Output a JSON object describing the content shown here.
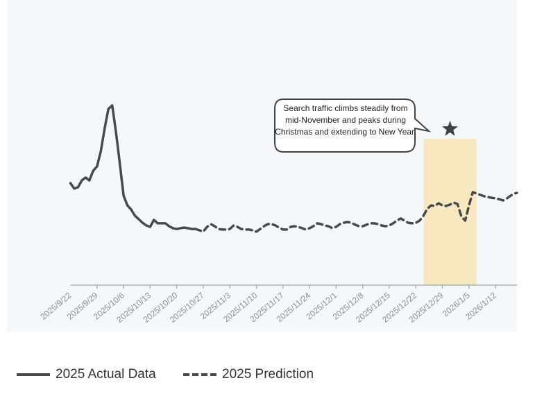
{
  "chart_data": {
    "type": "line",
    "title": "",
    "xlabel": "",
    "ylabel": "",
    "ylim": [
      0,
      100
    ],
    "xlim": [
      "2025-09-22",
      "2026-01-18"
    ],
    "grid": false,
    "legend_position": "bottom-left",
    "x_tick_labels": [
      "2025/9/22",
      "2025/9/29",
      "2025/10/6",
      "2025/10/13",
      "2025/10/20",
      "2025/10/27",
      "2025/11/3",
      "2025/11/10",
      "2025/11/17",
      "2025/11/24",
      "2025/12/1",
      "2025/12/8",
      "2025/12/15",
      "2025/12/22",
      "2025/12/29",
      "2026/1/5",
      "2026/1/12"
    ],
    "x_tick_dates": [
      "2025-09-22",
      "2025-09-29",
      "2025-10-06",
      "2025-10-13",
      "2025-10-20",
      "2025-10-27",
      "2025-11-03",
      "2025-11-10",
      "2025-11-17",
      "2025-11-24",
      "2025-12-01",
      "2025-12-08",
      "2025-12-15",
      "2025-12-22",
      "2025-12-29",
      "2026-01-05",
      "2026-01-12"
    ],
    "series": [
      {
        "name": "2025 Actual Data",
        "style": "solid",
        "color": "#474a4a",
        "points": [
          [
            "2025-09-22",
            52.3
          ],
          [
            "2025-09-23",
            49.5
          ],
          [
            "2025-09-24",
            50.2
          ],
          [
            "2025-09-25",
            53.7
          ],
          [
            "2025-09-26",
            55.2
          ],
          [
            "2025-09-27",
            53.7
          ],
          [
            "2025-09-28",
            58.7
          ],
          [
            "2025-09-29",
            60.9
          ],
          [
            "2025-09-30",
            68.7
          ],
          [
            "2025-10-01",
            80.1
          ],
          [
            "2025-10-02",
            90.4
          ],
          [
            "2025-10-03",
            92.2
          ],
          [
            "2025-10-04",
            78.6
          ],
          [
            "2025-10-05",
            62.6
          ],
          [
            "2025-10-06",
            45.9
          ],
          [
            "2025-10-07",
            40.9
          ],
          [
            "2025-10-08",
            38.8
          ],
          [
            "2025-10-09",
            35.6
          ],
          [
            "2025-10-10",
            33.8
          ],
          [
            "2025-10-11",
            32.0
          ],
          [
            "2025-10-12",
            30.6
          ],
          [
            "2025-10-13",
            29.9
          ],
          [
            "2025-10-14",
            33.5
          ],
          [
            "2025-10-15",
            31.7
          ],
          [
            "2025-10-16",
            31.7
          ],
          [
            "2025-10-17",
            31.7
          ],
          [
            "2025-10-18",
            30.2
          ],
          [
            "2025-10-19",
            29.2
          ],
          [
            "2025-10-20",
            28.8
          ],
          [
            "2025-10-21",
            29.2
          ],
          [
            "2025-10-22",
            29.5
          ],
          [
            "2025-10-23",
            29.2
          ],
          [
            "2025-10-24",
            28.8
          ],
          [
            "2025-10-25",
            28.8
          ]
        ]
      },
      {
        "name": "2025 Prediction",
        "style": "dashed",
        "color": "#474a4a",
        "points": [
          [
            "2025-10-25",
            28.8
          ],
          [
            "2025-10-26",
            28.1
          ],
          [
            "2025-10-27",
            27.4
          ],
          [
            "2025-10-28",
            29.9
          ],
          [
            "2025-10-29",
            31.3
          ],
          [
            "2025-10-30",
            30.2
          ],
          [
            "2025-10-31",
            28.8
          ],
          [
            "2025-11-01",
            28.5
          ],
          [
            "2025-11-02",
            28.5
          ],
          [
            "2025-11-03",
            28.8
          ],
          [
            "2025-11-04",
            30.6
          ],
          [
            "2025-11-05",
            29.9
          ],
          [
            "2025-11-06",
            28.8
          ],
          [
            "2025-11-07",
            28.5
          ],
          [
            "2025-11-08",
            28.5
          ],
          [
            "2025-11-09",
            28.1
          ],
          [
            "2025-11-10",
            27.4
          ],
          [
            "2025-11-11",
            28.8
          ],
          [
            "2025-11-12",
            30.2
          ],
          [
            "2025-11-13",
            31.3
          ],
          [
            "2025-11-14",
            31.3
          ],
          [
            "2025-11-15",
            30.6
          ],
          [
            "2025-11-16",
            29.5
          ],
          [
            "2025-11-17",
            28.5
          ],
          [
            "2025-11-18",
            28.5
          ],
          [
            "2025-11-19",
            29.9
          ],
          [
            "2025-11-20",
            30.2
          ],
          [
            "2025-11-21",
            29.9
          ],
          [
            "2025-11-22",
            29.2
          ],
          [
            "2025-11-23",
            28.5
          ],
          [
            "2025-11-24",
            29.2
          ],
          [
            "2025-11-25",
            30.2
          ],
          [
            "2025-11-26",
            31.7
          ],
          [
            "2025-11-27",
            31.3
          ],
          [
            "2025-11-28",
            30.6
          ],
          [
            "2025-11-29",
            30.2
          ],
          [
            "2025-11-30",
            29.2
          ],
          [
            "2025-12-01",
            29.9
          ],
          [
            "2025-12-02",
            31.3
          ],
          [
            "2025-12-03",
            32.0
          ],
          [
            "2025-12-04",
            32.4
          ],
          [
            "2025-12-05",
            32.0
          ],
          [
            "2025-12-06",
            31.0
          ],
          [
            "2025-12-07",
            30.2
          ],
          [
            "2025-12-08",
            30.2
          ],
          [
            "2025-12-09",
            31.0
          ],
          [
            "2025-12-10",
            31.7
          ],
          [
            "2025-12-11",
            31.7
          ],
          [
            "2025-12-12",
            31.3
          ],
          [
            "2025-12-13",
            30.6
          ],
          [
            "2025-12-14",
            30.2
          ],
          [
            "2025-12-15",
            30.6
          ],
          [
            "2025-12-16",
            31.7
          ],
          [
            "2025-12-17",
            33.1
          ],
          [
            "2025-12-18",
            34.2
          ],
          [
            "2025-12-19",
            33.1
          ],
          [
            "2025-12-20",
            32.0
          ],
          [
            "2025-12-21",
            31.7
          ],
          [
            "2025-12-22",
            32.0
          ],
          [
            "2025-12-23",
            33.1
          ],
          [
            "2025-12-24",
            35.6
          ],
          [
            "2025-12-25",
            39.1
          ],
          [
            "2025-12-26",
            40.9
          ],
          [
            "2025-12-27",
            40.6
          ],
          [
            "2025-12-28",
            42.0
          ],
          [
            "2025-12-29",
            40.9
          ],
          [
            "2025-12-30",
            40.6
          ],
          [
            "2025-12-31",
            41.3
          ],
          [
            "2026-01-01",
            42.3
          ],
          [
            "2026-01-02",
            41.6
          ],
          [
            "2026-01-03",
            35.2
          ],
          [
            "2026-01-04",
            33.1
          ],
          [
            "2026-01-05",
            40.9
          ],
          [
            "2026-01-06",
            47.7
          ],
          [
            "2026-01-07",
            47.0
          ],
          [
            "2026-01-08",
            46.3
          ],
          [
            "2026-01-09",
            45.6
          ],
          [
            "2026-01-10",
            45.2
          ],
          [
            "2026-01-11",
            44.8
          ],
          [
            "2026-01-12",
            44.5
          ],
          [
            "2026-01-13",
            44.1
          ],
          [
            "2026-01-14",
            43.4
          ],
          [
            "2026-01-15",
            44.5
          ],
          [
            "2026-01-16",
            45.9
          ],
          [
            "2026-01-17",
            47.0
          ],
          [
            "2026-01-18",
            47.3
          ]
        ]
      }
    ],
    "highlight": {
      "start": "2025-12-24",
      "end": "2026-01-07",
      "color": "#f8e8c0",
      "marker": "star-icon"
    },
    "annotation": {
      "text": "Search traffic climbs steadily from mid-November and peaks during Christmas and extending to New Year."
    }
  },
  "legend": {
    "actual_label": "2025 Actual Data",
    "prediction_label": "2025 Prediction"
  }
}
